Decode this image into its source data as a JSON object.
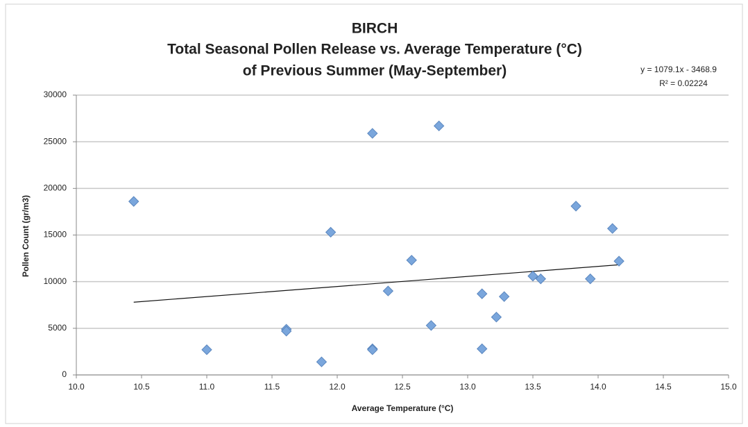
{
  "chart_data": {
    "type": "scatter",
    "title": [
      "BIRCH",
      "Total Seasonal Pollen Release vs. Average Temperature (°C)",
      "of Previous Summer (May-September)"
    ],
    "x_label": "Average Temperature (°C)",
    "y_label": "Pollen Count (gr/m3)",
    "x": [
      10.44,
      11.0,
      11.61,
      11.61,
      11.88,
      11.95,
      12.27,
      12.27,
      12.27,
      12.39,
      12.57,
      12.72,
      12.78,
      13.11,
      13.11,
      13.22,
      13.28,
      13.5,
      13.56,
      13.83,
      13.94,
      14.11,
      14.16
    ],
    "values": [
      18600,
      2700,
      4900,
      4700,
      1400,
      15300,
      25900,
      2800,
      2700,
      9000,
      12300,
      5300,
      26700,
      8700,
      2800,
      6200,
      8400,
      10600,
      10300,
      18100,
      10300,
      15700,
      12200
    ],
    "color": "#7aa6dc",
    "xlim": [
      10,
      15
    ],
    "xticks": [
      {
        "value": 10,
        "label": "10.0"
      },
      {
        "value": 10.5,
        "label": "10.5"
      },
      {
        "value": 11,
        "label": "11.0"
      },
      {
        "value": 11.5,
        "label": "11.5"
      },
      {
        "value": 12,
        "label": "12.0"
      },
      {
        "value": 12.5,
        "label": "12.5"
      },
      {
        "value": 13,
        "label": "13.0"
      },
      {
        "value": 13.5,
        "label": "13.5"
      },
      {
        "value": 14,
        "label": "14.0"
      },
      {
        "value": 14.5,
        "label": "14.5"
      },
      {
        "value": 15,
        "label": "15.0"
      }
    ],
    "ylim": [
      0,
      30000
    ],
    "yticks": [
      0,
      5000,
      10000,
      15000,
      20000,
      25000,
      30000
    ],
    "grid": true,
    "trendline": {
      "equation": "y = 1079.1x - 3468.9",
      "r_squared": "R² = 0.02224",
      "slope": 1079.1,
      "intercept": -3468.9
    }
  }
}
